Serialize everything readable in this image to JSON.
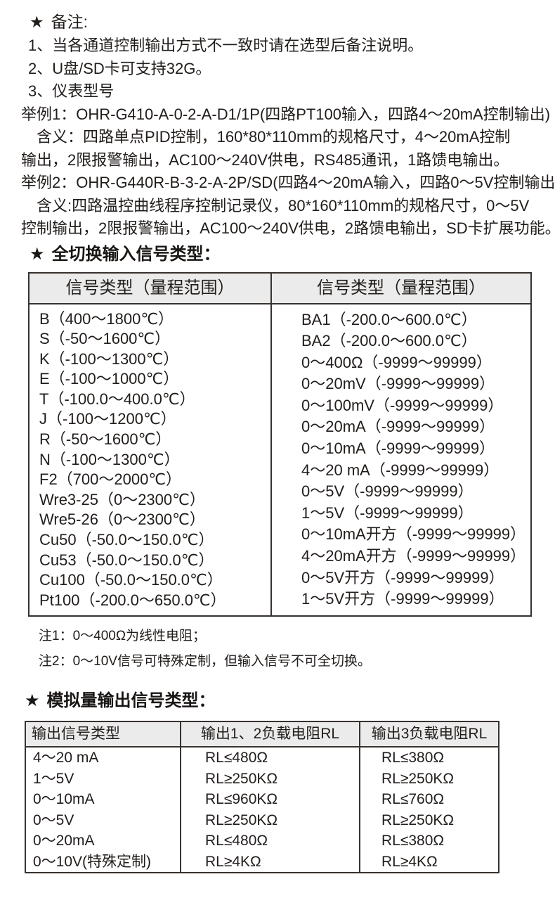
{
  "icons": {
    "star": "★"
  },
  "colors": {
    "background": "#ffffff",
    "text": "#211d1b",
    "table_border": "#38322f",
    "table_header_bg": "#ebebeb"
  },
  "notes": {
    "title": "备注:",
    "lines": [
      "1、当各通道控制输出方式不一致时请在选型后备注说明。",
      "2、U盘/SD卡可支持32G。",
      "3、仪表型号",
      "举例1：OHR-G410-A-0-2-A-D1/1P(四路PT100输入，四路4～20mA控制输出)",
      "含义：四路单点PID控制，160*80*110mm的规格尺寸，4～20mA控制",
      "输出，2限报警输出，AC100～240V供电，RS485通讯，1路馈电输出。",
      "举例2：OHR-G440R-B-3-2-A-2P/SD(四路4～20mA输入，四路0～5V控制输出)",
      "含义:四路温控曲线程序控制记录仪，80*160*110mm的规格尺寸，0～5V",
      "控制输出，2限报警输出，AC100～240V供电，2路馈电输出，SD卡扩展功能。"
    ]
  },
  "input_section": {
    "title": "全切换输入信号类型：",
    "table": {
      "headers": [
        "信号类型（量程范围）",
        "信号类型（量程范围）"
      ],
      "left_rows": [
        "B（400～1800℃）",
        "S（-50～1600℃）",
        "K（-100～1300℃）",
        "E（-100～1000℃）",
        "T（-100.0～400.0℃）",
        "J（-100～1200℃）",
        "R（-50～1600℃）",
        "N（-100～1300℃）",
        "F2（700～2000℃）",
        "Wre3-25（0～2300℃）",
        "Wre5-26（0～2300℃）",
        "Cu50（-50.0～150.0℃）",
        "Cu53（-50.0～150.0℃）",
        "Cu100（-50.0～150.0℃）",
        "Pt100（-200.0～650.0℃）"
      ],
      "right_rows": [
        "BA1（-200.0～600.0℃）",
        "BA2（-200.0～600.0℃）",
        "0～400Ω（-9999～99999）",
        "0～20mV（-9999～99999）",
        "0～100mV（-9999～99999）",
        "0～20mA（-9999～99999）",
        "0～10mA（-9999～99999）",
        "4～20 mA（-9999～99999）",
        "0～5V（-9999～99999）",
        "1～5V（-9999～99999）",
        "0～10mA开方（-9999～99999）",
        "4～20mA开方（-9999～99999）",
        "0～5V开方（-9999～99999）",
        "1～5V开方（-9999～99999）"
      ]
    },
    "footnotes": [
      "注1：0～400Ω为线性电阻；",
      "注2：0～10V信号可特殊定制，但输入信号不可全切换。"
    ]
  },
  "output_section": {
    "title": "模拟量输出信号类型：",
    "table": {
      "headers": [
        "输出信号类型",
        "输出1、2负载电阻RL",
        "输出3负载电阻RL"
      ],
      "rows": [
        [
          "4～20 mA",
          "RL≤480Ω",
          "RL≤380Ω"
        ],
        [
          "1～5V",
          "RL≥250KΩ",
          "RL≥250KΩ"
        ],
        [
          "0～10mA",
          "RL≤960KΩ",
          "RL≤760Ω"
        ],
        [
          "0～5V",
          "RL≥250KΩ",
          "RL≥250KΩ"
        ],
        [
          "0～20mA",
          "RL≤480Ω",
          "RL≤380Ω"
        ],
        [
          "0～10V(特殊定制)",
          "RL≥4KΩ",
          "RL≥4KΩ"
        ]
      ]
    }
  }
}
